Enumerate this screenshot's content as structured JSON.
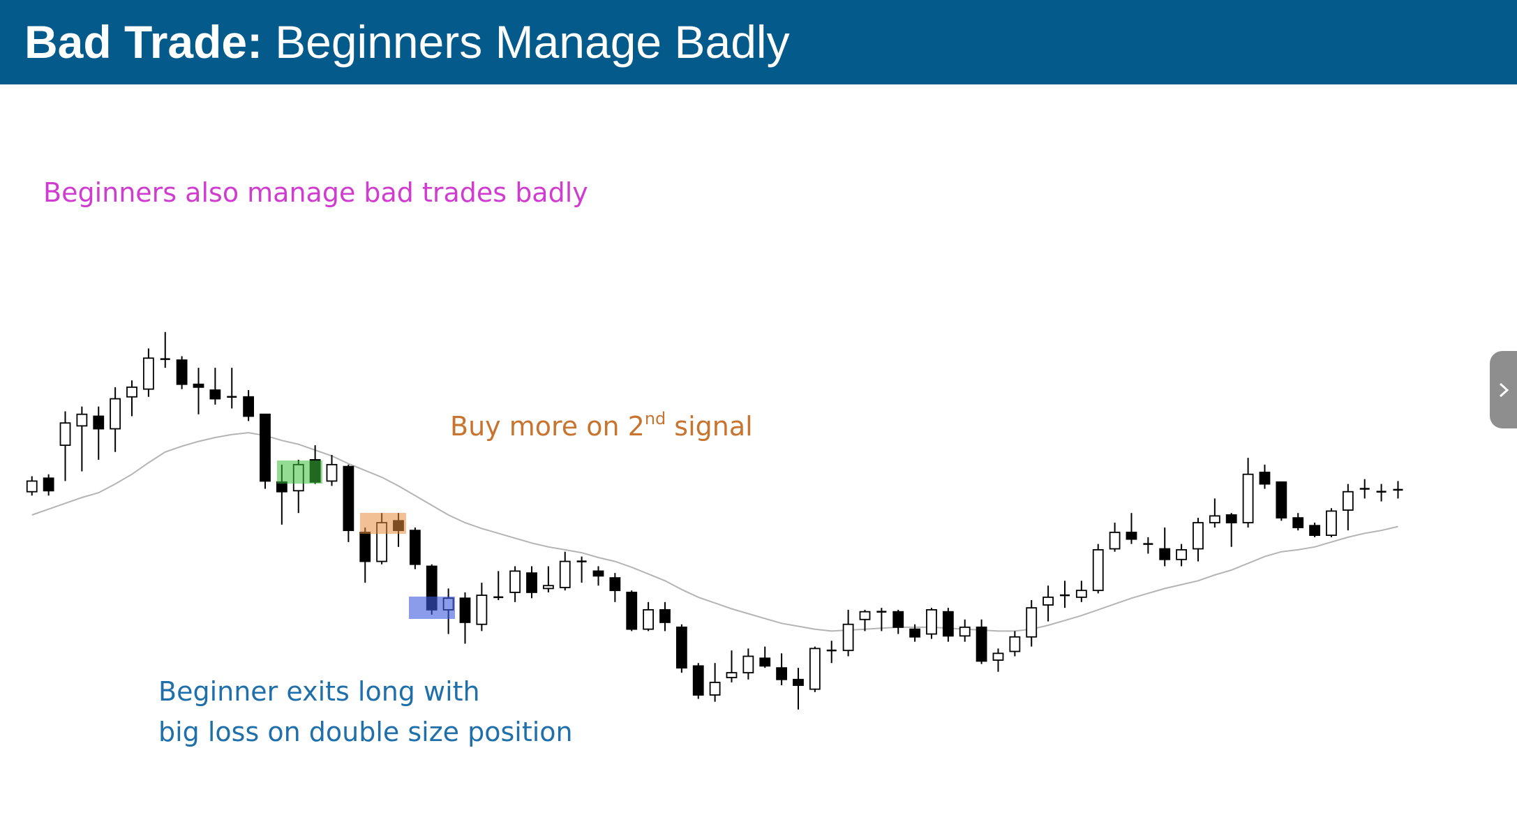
{
  "header": {
    "title_bold": "Bad Trade:",
    "title": "Beginners Manage Badly"
  },
  "annotations": {
    "intro": "Beginners also manage bad trades badly",
    "buy_more": [
      "Buy more on 2",
      "nd",
      "signal"
    ],
    "exit": [
      "Beginner exits long with",
      "big loss on double size position"
    ]
  },
  "chart_data": {
    "type": "candlestick",
    "ylim": [
      0,
      842
    ],
    "up_color": "#ffffff",
    "down_color": "#000000",
    "open": [
      334,
      348,
      382,
      402,
      412,
      399,
      432,
      440,
      471,
      470,
      445,
      439,
      432,
      432,
      414,
      344,
      335,
      367,
      345,
      360,
      292,
      262,
      304,
      294,
      257,
      212,
      224,
      197,
      225,
      230,
      250,
      234,
      235,
      262,
      252,
      245,
      230,
      192,
      212,
      194,
      154,
      124,
      142,
      147,
      162,
      152,
      140,
      130,
      170,
      170,
      202,
      210,
      210,
      192,
      187,
      210,
      185,
      194,
      160,
      169,
      184,
      217,
      227,
      225,
      232,
      275,
      292,
      280,
      275,
      264,
      275,
      302,
      310,
      302,
      354,
      344,
      307,
      299,
      289,
      315,
      337,
      334,
      336
    ],
    "high": [
      350,
      352,
      417,
      422,
      422,
      442,
      449,
      482,
      499,
      474,
      462,
      462,
      462,
      439,
      414,
      362,
      367,
      382,
      372,
      362,
      297,
      312,
      312,
      297,
      259,
      234,
      230,
      240,
      252,
      257,
      257,
      257,
      272,
      267,
      257,
      250,
      232,
      220,
      220,
      197,
      157,
      157,
      170,
      172,
      174,
      167,
      152,
      174,
      180,
      212,
      212,
      214,
      212,
      197,
      214,
      214,
      202,
      202,
      172,
      190,
      222,
      237,
      242,
      242,
      280,
      302,
      312,
      287,
      297,
      280,
      307,
      327,
      312,
      369,
      362,
      344,
      312,
      302,
      317,
      342,
      347,
      342,
      345
    ],
    "low": [
      330,
      330,
      345,
      355,
      367,
      375,
      412,
      432,
      462,
      440,
      414,
      424,
      420,
      407,
      337,
      300,
      312,
      342,
      340,
      282,
      240,
      259,
      277,
      254,
      207,
      187,
      177,
      190,
      222,
      220,
      224,
      230,
      232,
      240,
      237,
      220,
      190,
      190,
      190,
      147,
      120,
      117,
      137,
      140,
      152,
      134,
      109,
      127,
      157,
      164,
      190,
      190,
      187,
      179,
      182,
      179,
      179,
      156,
      148,
      164,
      174,
      200,
      214,
      220,
      229,
      272,
      280,
      270,
      257,
      257,
      262,
      297,
      277,
      297,
      337,
      304,
      294,
      287,
      287,
      294,
      327,
      324,
      327
    ],
    "close": [
      345,
      335,
      405,
      414,
      399,
      430,
      442,
      472,
      471,
      445,
      442,
      430,
      432,
      412,
      345,
      334,
      362,
      344,
      362,
      294,
      262,
      302,
      294,
      259,
      212,
      224,
      199,
      227,
      225,
      252,
      230,
      237,
      262,
      262,
      247,
      232,
      192,
      212,
      199,
      152,
      124,
      137,
      147,
      164,
      154,
      140,
      134,
      172,
      170,
      197,
      210,
      210,
      194,
      184,
      212,
      185,
      194,
      159,
      167,
      184,
      214,
      225,
      227,
      232,
      274,
      292,
      285,
      280,
      264,
      274,
      302,
      309,
      302,
      352,
      342,
      307,
      297,
      289,
      314,
      334,
      337,
      334,
      336
    ],
    "ma": {
      "color": "#b4b4b4",
      "values": [
        310,
        316,
        322,
        328,
        333,
        342,
        352,
        364,
        375,
        381,
        386,
        390,
        393,
        395,
        392,
        387,
        383,
        377,
        371,
        363,
        356,
        349,
        340,
        330,
        320,
        310,
        302,
        296,
        291,
        286,
        281,
        277,
        274,
        271,
        266,
        262,
        256,
        249,
        242,
        233,
        225,
        219,
        213,
        208,
        203,
        198,
        195,
        192,
        190,
        191,
        192,
        193,
        194,
        194,
        194,
        193,
        192,
        191,
        190,
        190,
        192,
        196,
        201,
        206,
        212,
        218,
        224,
        229,
        234,
        238,
        242,
        248,
        253,
        260,
        267,
        272,
        274,
        277,
        282,
        287,
        291,
        294,
        298
      ]
    }
  }
}
